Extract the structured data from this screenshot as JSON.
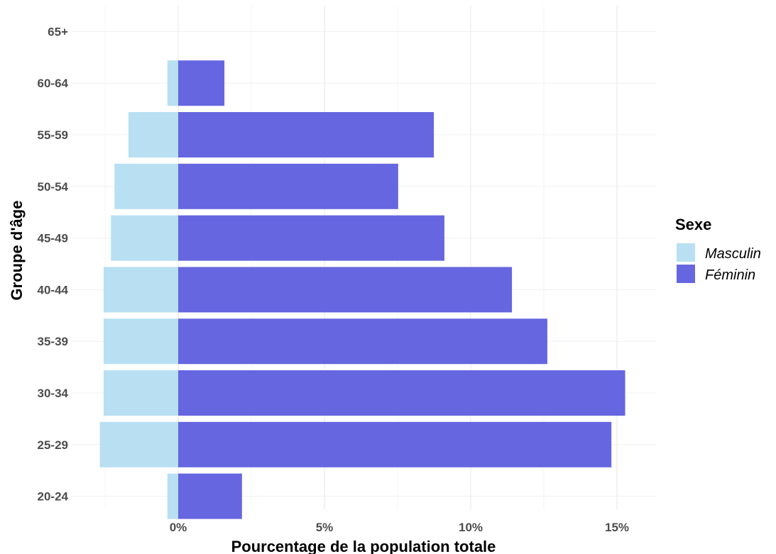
{
  "chart_data": {
    "type": "bar",
    "orientation": "horizontal",
    "title": "",
    "xlabel": "Pourcentage de la population totale",
    "ylabel": "Groupe d'âge",
    "categories": [
      "20-24",
      "25-29",
      "30-34",
      "35-39",
      "40-44",
      "45-49",
      "50-54",
      "55-59",
      "60-64",
      "65+"
    ],
    "series": [
      {
        "name": "Masculin",
        "color": "#b8e0f2",
        "values": [
          -0.37,
          -2.68,
          -2.55,
          -2.55,
          -2.55,
          -2.3,
          -2.18,
          -1.7,
          -0.37,
          0
        ]
      },
      {
        "name": "Féminin",
        "color": "#6666e0",
        "values": [
          2.18,
          14.81,
          15.28,
          12.62,
          11.41,
          9.1,
          7.52,
          8.74,
          1.58,
          0
        ]
      }
    ],
    "xlim": [
      -2.68,
      15.28
    ],
    "xticks": [
      0,
      5,
      10,
      15
    ],
    "xtick_labels": [
      "0%",
      "5%",
      "10%",
      "15%"
    ],
    "grid": true,
    "legend": {
      "title": "Sexe",
      "placement": "right",
      "entries": [
        "Masculin",
        "Féminin"
      ]
    }
  }
}
